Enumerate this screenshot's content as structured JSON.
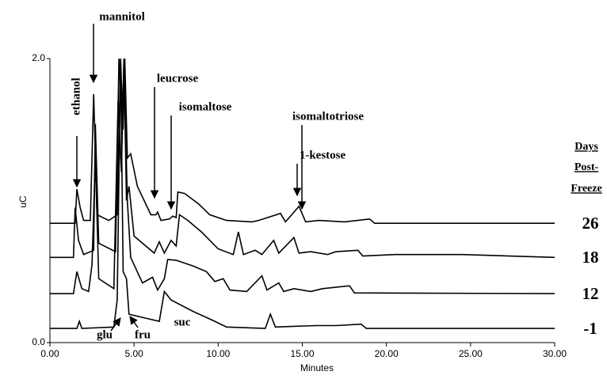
{
  "chart_data": {
    "type": "line",
    "xlabel": "Minutes",
    "ylabel": "uC",
    "xlim": [
      0,
      30
    ],
    "ylim": [
      0,
      2
    ],
    "xticks": [
      {
        "value": 0,
        "label": "0.00"
      },
      {
        "value": 5,
        "label": "5.00"
      },
      {
        "value": 10,
        "label": "10.00"
      },
      {
        "value": 15,
        "label": "15.00"
      },
      {
        "value": 20,
        "label": "20.00"
      },
      {
        "value": 25,
        "label": "25.00"
      },
      {
        "value": 30,
        "label": "30.00"
      }
    ],
    "yticks": [
      {
        "value": 0,
        "label": "0.0"
      },
      {
        "value": 2,
        "label": "2.0"
      }
    ],
    "legend_title": [
      "Days",
      "Post-",
      "Freeze"
    ],
    "annotations": [
      "ethanol",
      "mannitol",
      "leucrose",
      "isomaltose",
      "isomaltotriose",
      "1-kestose",
      "glu",
      "fru",
      "suc"
    ],
    "series": [
      {
        "name": "26",
        "color": "#000000",
        "x": [
          0,
          1.5,
          1.6,
          1.8,
          2.0,
          2.4,
          2.6,
          2.8,
          3.5,
          4.0,
          4.2,
          4.35,
          4.45,
          4.6,
          4.8,
          5.2,
          6.0,
          6.3,
          6.4,
          6.6,
          7.1,
          7.3,
          7.5,
          7.6,
          8.0,
          8.8,
          9.5,
          10.5,
          12.0,
          12.4,
          13.7,
          14.0,
          14.8,
          15.2,
          16.0,
          17.5,
          19.0,
          19.3,
          30
        ],
        "values": [
          0.84,
          0.84,
          1.08,
          0.95,
          0.86,
          0.86,
          1.75,
          0.9,
          0.86,
          0.9,
          2.0,
          1.5,
          2.0,
          1.3,
          1.33,
          1.1,
          0.9,
          0.9,
          0.92,
          0.86,
          0.87,
          0.89,
          0.88,
          1.06,
          1.05,
          0.98,
          0.9,
          0.86,
          0.85,
          0.86,
          0.91,
          0.85,
          0.96,
          0.85,
          0.86,
          0.85,
          0.87,
          0.84,
          0.84
        ]
      },
      {
        "name": "18",
        "color": "#000000",
        "x": [
          0,
          1.4,
          1.5,
          1.7,
          2.0,
          2.6,
          2.7,
          2.9,
          3.9,
          4.1,
          4.3,
          4.4,
          4.55,
          4.7,
          5.0,
          6.2,
          6.5,
          6.8,
          7.2,
          7.5,
          7.7,
          8.2,
          9.0,
          10.0,
          10.9,
          11.2,
          11.5,
          12.2,
          12.6,
          13.3,
          13.6,
          14.5,
          14.8,
          15.5,
          16.5,
          17.0,
          18.3,
          18.6,
          20.5,
          24.5,
          30
        ],
        "values": [
          0.6,
          0.6,
          0.95,
          0.72,
          0.62,
          0.65,
          1.54,
          0.7,
          0.64,
          2.0,
          1.5,
          2.0,
          1.0,
          1.1,
          0.75,
          0.63,
          0.71,
          0.63,
          0.72,
          0.68,
          0.9,
          0.86,
          0.78,
          0.66,
          0.62,
          0.78,
          0.62,
          0.65,
          0.62,
          0.72,
          0.63,
          0.74,
          0.63,
          0.64,
          0.62,
          0.64,
          0.65,
          0.61,
          0.62,
          0.62,
          0.6
        ]
      },
      {
        "name": "12",
        "color": "#000000",
        "x": [
          0,
          1.4,
          1.6,
          1.9,
          2.3,
          2.5,
          2.7,
          2.9,
          3.8,
          4.05,
          4.25,
          4.4,
          4.6,
          4.8,
          5.5,
          6.1,
          6.4,
          6.8,
          7.0,
          7.5,
          8.5,
          9.3,
          9.8,
          10.3,
          10.7,
          11.7,
          12.6,
          12.9,
          13.6,
          13.9,
          14.5,
          15.5,
          16.2,
          17.8,
          18.1,
          30
        ],
        "values": [
          0.345,
          0.345,
          0.5,
          0.38,
          0.36,
          0.55,
          1.3,
          0.45,
          0.38,
          1.7,
          1.2,
          2.0,
          1.0,
          0.6,
          0.42,
          0.46,
          0.37,
          0.45,
          0.585,
          0.58,
          0.54,
          0.5,
          0.43,
          0.45,
          0.37,
          0.36,
          0.47,
          0.37,
          0.42,
          0.36,
          0.38,
          0.36,
          0.38,
          0.4,
          0.35,
          0.345
        ]
      },
      {
        "name": "-1",
        "color": "#000000",
        "x": [
          0,
          1.6,
          1.75,
          1.9,
          3.8,
          4.0,
          4.2,
          4.35,
          4.55,
          4.7,
          6.5,
          6.8,
          7.2,
          8.5,
          9.8,
          10.5,
          12.8,
          13.1,
          13.4,
          15.8,
          17.0,
          18.5,
          18.8,
          30
        ],
        "values": [
          0.1,
          0.1,
          0.15,
          0.1,
          0.11,
          0.3,
          2.0,
          0.5,
          0.45,
          0.2,
          0.15,
          0.36,
          0.3,
          0.22,
          0.15,
          0.11,
          0.1,
          0.2,
          0.11,
          0.12,
          0.12,
          0.13,
          0.1,
          0.1
        ]
      }
    ]
  }
}
